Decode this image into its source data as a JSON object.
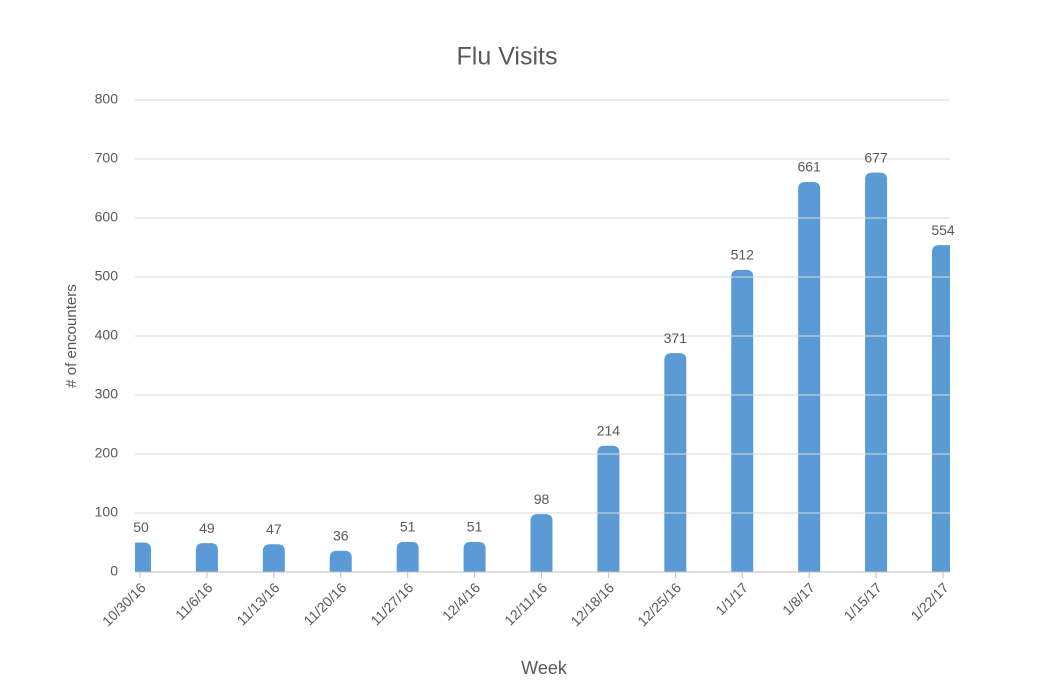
{
  "chart_data": {
    "type": "bar",
    "title": "Flu Visits",
    "x_label": "Week",
    "y_label": "# of encounters",
    "categories": [
      "10/30/16",
      "11/6/16",
      "11/13/16",
      "11/20/16",
      "11/27/16",
      "12/4/16",
      "12/11/16",
      "12/18/16",
      "12/25/16",
      "1/1/17",
      "1/8/17",
      "1/15/17",
      "1/22/17"
    ],
    "values": [
      50,
      49,
      47,
      36,
      51,
      51,
      98,
      214,
      371,
      512,
      661,
      677,
      554
    ],
    "color": "#5b9bd5",
    "ylim": [
      0,
      800
    ],
    "yticks": [
      0,
      100,
      200,
      300,
      400,
      500,
      600,
      700,
      800
    ],
    "grid": true
  }
}
